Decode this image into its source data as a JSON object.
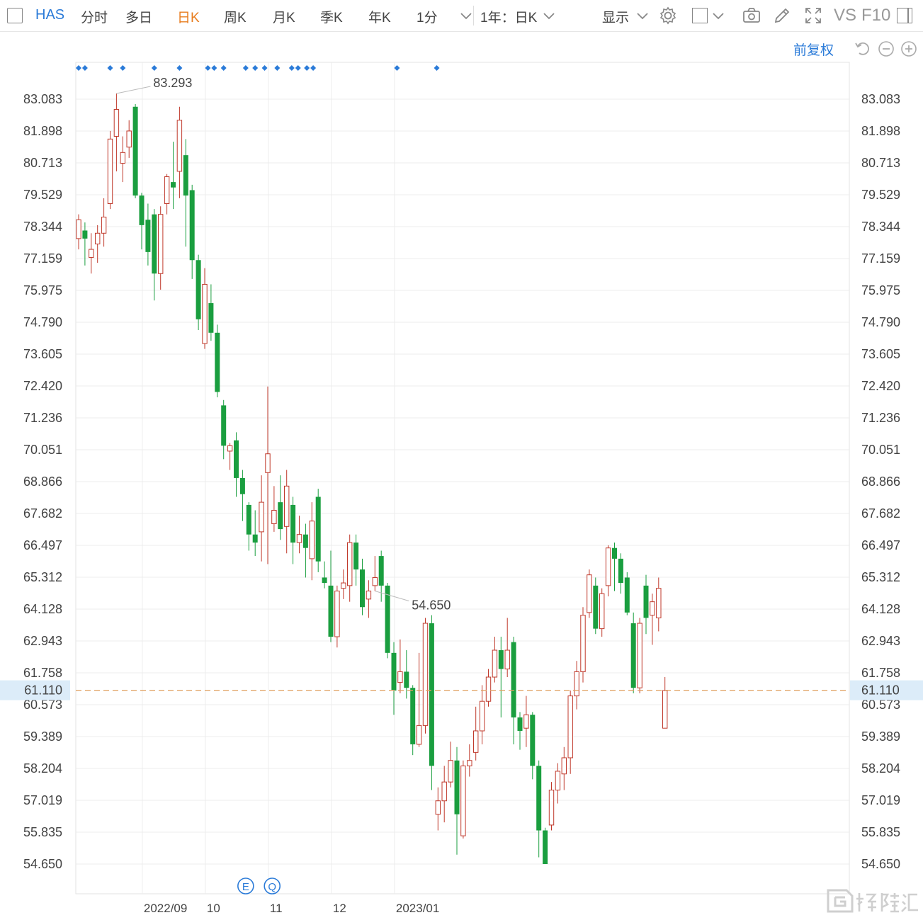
{
  "toolbar": {
    "symbol": "HAS",
    "tabs": [
      "分时",
      "多日",
      "日K",
      "周K",
      "月K",
      "季K",
      "年K",
      "1分"
    ],
    "active_tab": "日K",
    "range_select": "1年：日K",
    "display_label": "显示",
    "vs_label": "VS",
    "f10_label": "F10",
    "fuquan_label": "前复权"
  },
  "colors": {
    "up": "#c0392b",
    "down": "#1a9e3f",
    "current_price_line": "#e0a060",
    "current_price_bg": "#dcecf9",
    "accent": "#2b7bd8"
  },
  "chart_data": {
    "type": "candlestick",
    "y_ticks": [
      "83.083",
      "81.898",
      "80.713",
      "79.529",
      "78.344",
      "77.159",
      "75.975",
      "74.790",
      "73.605",
      "72.420",
      "71.236",
      "70.051",
      "68.866",
      "67.682",
      "66.497",
      "65.312",
      "64.128",
      "62.943",
      "61.758",
      "60.573",
      "59.389",
      "58.204",
      "57.019",
      "55.835",
      "54.650"
    ],
    "ylim": [
      54.65,
      83.083
    ],
    "x_labels": [
      {
        "label": "2022/09",
        "index": 11
      },
      {
        "label": "10",
        "index": 21
      },
      {
        "label": "11",
        "index": 31
      },
      {
        "label": "12",
        "index": 41
      },
      {
        "label": "2023/01",
        "index": 51
      }
    ],
    "current_price": "61.110",
    "high_annotation": {
      "label": "83.293",
      "index": 6
    },
    "low_annotation": {
      "label": "54.650",
      "index": 47
    },
    "event_markers": [
      "E",
      "Q"
    ],
    "event_marker_index": [
      26.5,
      30.7
    ],
    "dot_marker_index": [
      0,
      1,
      5,
      7,
      12,
      16,
      20.5,
      21.5,
      23,
      26.5,
      28,
      29.5,
      31.5,
      33.8,
      34.8,
      36.2,
      37.2,
      50.5,
      56.8
    ],
    "candles": [
      {
        "o": 77.9,
        "c": 78.6,
        "h": 78.8,
        "l": 77.5
      },
      {
        "o": 78.2,
        "c": 77.9,
        "h": 78.5,
        "l": 76.9
      },
      {
        "o": 77.2,
        "c": 77.5,
        "h": 78.1,
        "l": 76.6
      },
      {
        "o": 77.7,
        "c": 78.1,
        "h": 78.4,
        "l": 77.0
      },
      {
        "o": 78.1,
        "c": 78.7,
        "h": 79.4,
        "l": 77.6
      },
      {
        "o": 79.2,
        "c": 81.6,
        "h": 81.9,
        "l": 79.0
      },
      {
        "o": 81.7,
        "c": 82.7,
        "h": 83.293,
        "l": 80.4
      },
      {
        "o": 80.7,
        "c": 81.1,
        "h": 81.7,
        "l": 80.0
      },
      {
        "o": 81.3,
        "c": 81.9,
        "h": 82.3,
        "l": 80.9
      },
      {
        "o": 82.8,
        "c": 79.5,
        "h": 82.9,
        "l": 79.4
      },
      {
        "o": 79.5,
        "c": 78.4,
        "h": 79.6,
        "l": 77.5
      },
      {
        "o": 78.6,
        "c": 77.4,
        "h": 79.2,
        "l": 76.9
      },
      {
        "o": 78.8,
        "c": 76.6,
        "h": 79.0,
        "l": 75.6
      },
      {
        "o": 76.6,
        "c": 78.8,
        "h": 79.1,
        "l": 76.0
      },
      {
        "o": 79.2,
        "c": 80.2,
        "h": 80.3,
        "l": 78.8
      },
      {
        "o": 80.0,
        "c": 79.8,
        "h": 81.5,
        "l": 79.0
      },
      {
        "o": 80.4,
        "c": 82.3,
        "h": 82.8,
        "l": 79.4
      },
      {
        "o": 81.0,
        "c": 79.5,
        "h": 81.6,
        "l": 77.6
      },
      {
        "o": 79.7,
        "c": 77.1,
        "h": 79.9,
        "l": 76.4
      },
      {
        "o": 77.1,
        "c": 74.9,
        "h": 77.3,
        "l": 74.5
      },
      {
        "o": 74.0,
        "c": 76.2,
        "h": 76.8,
        "l": 73.8
      },
      {
        "o": 75.5,
        "c": 74.4,
        "h": 76.2,
        "l": 74.1
      },
      {
        "o": 74.4,
        "c": 72.2,
        "h": 74.7,
        "l": 72.0
      },
      {
        "o": 71.7,
        "c": 70.2,
        "h": 71.9,
        "l": 69.7
      },
      {
        "o": 70.0,
        "c": 70.2,
        "h": 70.3,
        "l": 69.3
      },
      {
        "o": 70.4,
        "c": 69.0,
        "h": 70.7,
        "l": 68.3
      },
      {
        "o": 69.0,
        "c": 68.4,
        "h": 69.3,
        "l": 67.4
      },
      {
        "o": 68.0,
        "c": 66.9,
        "h": 68.1,
        "l": 66.3
      },
      {
        "o": 66.9,
        "c": 66.6,
        "h": 67.8,
        "l": 66.1
      },
      {
        "o": 67.0,
        "c": 68.1,
        "h": 69.1,
        "l": 65.9
      },
      {
        "o": 69.2,
        "c": 69.9,
        "h": 72.4,
        "l": 65.8
      },
      {
        "o": 67.3,
        "c": 67.8,
        "h": 68.7,
        "l": 67.0
      },
      {
        "o": 68.1,
        "c": 67.1,
        "h": 69.1,
        "l": 66.7
      },
      {
        "o": 67.2,
        "c": 68.7,
        "h": 69.3,
        "l": 66.2
      },
      {
        "o": 68.0,
        "c": 66.6,
        "h": 68.3,
        "l": 65.8
      },
      {
        "o": 66.6,
        "c": 66.9,
        "h": 67.6,
        "l": 66.2
      },
      {
        "o": 66.9,
        "c": 66.4,
        "h": 67.3,
        "l": 65.3
      },
      {
        "o": 66.0,
        "c": 67.4,
        "h": 68.1,
        "l": 65.2
      },
      {
        "o": 68.3,
        "c": 65.9,
        "h": 68.6,
        "l": 65.5
      },
      {
        "o": 65.3,
        "c": 65.1,
        "h": 65.9,
        "l": 64.9
      },
      {
        "o": 65.0,
        "c": 63.1,
        "h": 66.3,
        "l": 62.9
      },
      {
        "o": 63.1,
        "c": 64.8,
        "h": 65.0,
        "l": 62.7
      },
      {
        "o": 64.9,
        "c": 65.1,
        "h": 65.6,
        "l": 64.5
      },
      {
        "o": 65.0,
        "c": 66.6,
        "h": 66.9,
        "l": 64.4
      },
      {
        "o": 66.6,
        "c": 65.6,
        "h": 66.9,
        "l": 65.0
      },
      {
        "o": 65.6,
        "c": 64.2,
        "h": 66.0,
        "l": 63.9
      },
      {
        "o": 64.5,
        "c": 64.8,
        "h": 65.2,
        "l": 63.8
      },
      {
        "o": 65.0,
        "c": 65.3,
        "h": 66.1,
        "l": 64.8
      },
      {
        "o": 66.1,
        "c": 65.0,
        "h": 66.3,
        "l": 64.4
      },
      {
        "o": 65.0,
        "c": 62.5,
        "h": 65.1,
        "l": 62.3
      },
      {
        "o": 62.5,
        "c": 61.1,
        "h": 62.9,
        "l": 60.2
      },
      {
        "o": 61.4,
        "c": 61.8,
        "h": 63.0,
        "l": 61.0
      },
      {
        "o": 61.8,
        "c": 61.2,
        "h": 62.6,
        "l": 60.8
      },
      {
        "o": 61.2,
        "c": 59.1,
        "h": 61.3,
        "l": 58.7
      },
      {
        "o": 59.1,
        "c": 59.8,
        "h": 62.5,
        "l": 59.0
      },
      {
        "o": 59.8,
        "c": 63.6,
        "h": 63.8,
        "l": 59.5
      },
      {
        "o": 63.6,
        "c": 58.3,
        "h": 63.9,
        "l": 57.4
      },
      {
        "o": 56.5,
        "c": 57.0,
        "h": 57.5,
        "l": 55.9
      },
      {
        "o": 57.0,
        "c": 57.7,
        "h": 58.3,
        "l": 56.2
      },
      {
        "o": 57.7,
        "c": 58.5,
        "h": 59.2,
        "l": 57.5
      },
      {
        "o": 58.5,
        "c": 56.5,
        "h": 59.0,
        "l": 55.0
      },
      {
        "o": 55.7,
        "c": 58.3,
        "h": 58.5,
        "l": 55.6
      },
      {
        "o": 58.3,
        "c": 58.5,
        "h": 59.1,
        "l": 57.9
      },
      {
        "o": 58.8,
        "c": 59.6,
        "h": 60.5,
        "l": 58.5
      },
      {
        "o": 59.6,
        "c": 60.7,
        "h": 61.3,
        "l": 59.1
      },
      {
        "o": 60.7,
        "c": 61.6,
        "h": 61.9,
        "l": 60.5
      },
      {
        "o": 61.6,
        "c": 62.6,
        "h": 63.1,
        "l": 61.4
      },
      {
        "o": 62.6,
        "c": 61.9,
        "h": 63.1,
        "l": 60.1
      },
      {
        "o": 61.9,
        "c": 62.6,
        "h": 63.8,
        "l": 61.6
      },
      {
        "o": 62.9,
        "c": 60.1,
        "h": 63.1,
        "l": 59.1
      },
      {
        "o": 60.1,
        "c": 59.6,
        "h": 60.3,
        "l": 58.9
      },
      {
        "o": 59.7,
        "c": 60.2,
        "h": 60.9,
        "l": 59.0
      },
      {
        "o": 60.2,
        "c": 58.3,
        "h": 60.3,
        "l": 57.8
      },
      {
        "o": 58.3,
        "c": 55.9,
        "h": 58.5,
        "l": 54.9
      },
      {
        "o": 55.9,
        "c": 54.65,
        "h": 56.0,
        "l": 54.65
      },
      {
        "o": 56.1,
        "c": 57.4,
        "h": 57.7,
        "l": 55.9
      },
      {
        "o": 57.4,
        "c": 58.1,
        "h": 58.4,
        "l": 56.9
      },
      {
        "o": 58.0,
        "c": 58.6,
        "h": 59.0,
        "l": 57.4
      },
      {
        "o": 58.6,
        "c": 60.9,
        "h": 61.1,
        "l": 58.0
      },
      {
        "o": 60.9,
        "c": 61.8,
        "h": 62.2,
        "l": 60.4
      },
      {
        "o": 61.8,
        "c": 63.9,
        "h": 64.2,
        "l": 61.4
      },
      {
        "o": 64.0,
        "c": 65.4,
        "h": 65.6,
        "l": 63.8
      },
      {
        "o": 65.0,
        "c": 63.4,
        "h": 65.3,
        "l": 63.2
      },
      {
        "o": 63.4,
        "c": 64.7,
        "h": 64.9,
        "l": 63.1
      },
      {
        "o": 65.0,
        "c": 66.4,
        "h": 66.5,
        "l": 64.6
      },
      {
        "o": 66.4,
        "c": 66.0,
        "h": 66.6,
        "l": 64.8
      },
      {
        "o": 66.0,
        "c": 65.1,
        "h": 66.2,
        "l": 64.7
      },
      {
        "o": 65.3,
        "c": 64.0,
        "h": 65.5,
        "l": 63.9
      },
      {
        "o": 63.6,
        "c": 61.2,
        "h": 64.0,
        "l": 61.0
      },
      {
        "o": 61.2,
        "c": 63.6,
        "h": 63.8,
        "l": 61.0
      },
      {
        "o": 65.0,
        "c": 63.8,
        "h": 65.4,
        "l": 63.2
      },
      {
        "o": 63.9,
        "c": 64.4,
        "h": 64.7,
        "l": 62.8
      },
      {
        "o": 63.8,
        "c": 64.9,
        "h": 65.3,
        "l": 63.3
      },
      {
        "o": 59.7,
        "c": 61.1,
        "h": 61.6,
        "l": 59.7
      }
    ]
  }
}
